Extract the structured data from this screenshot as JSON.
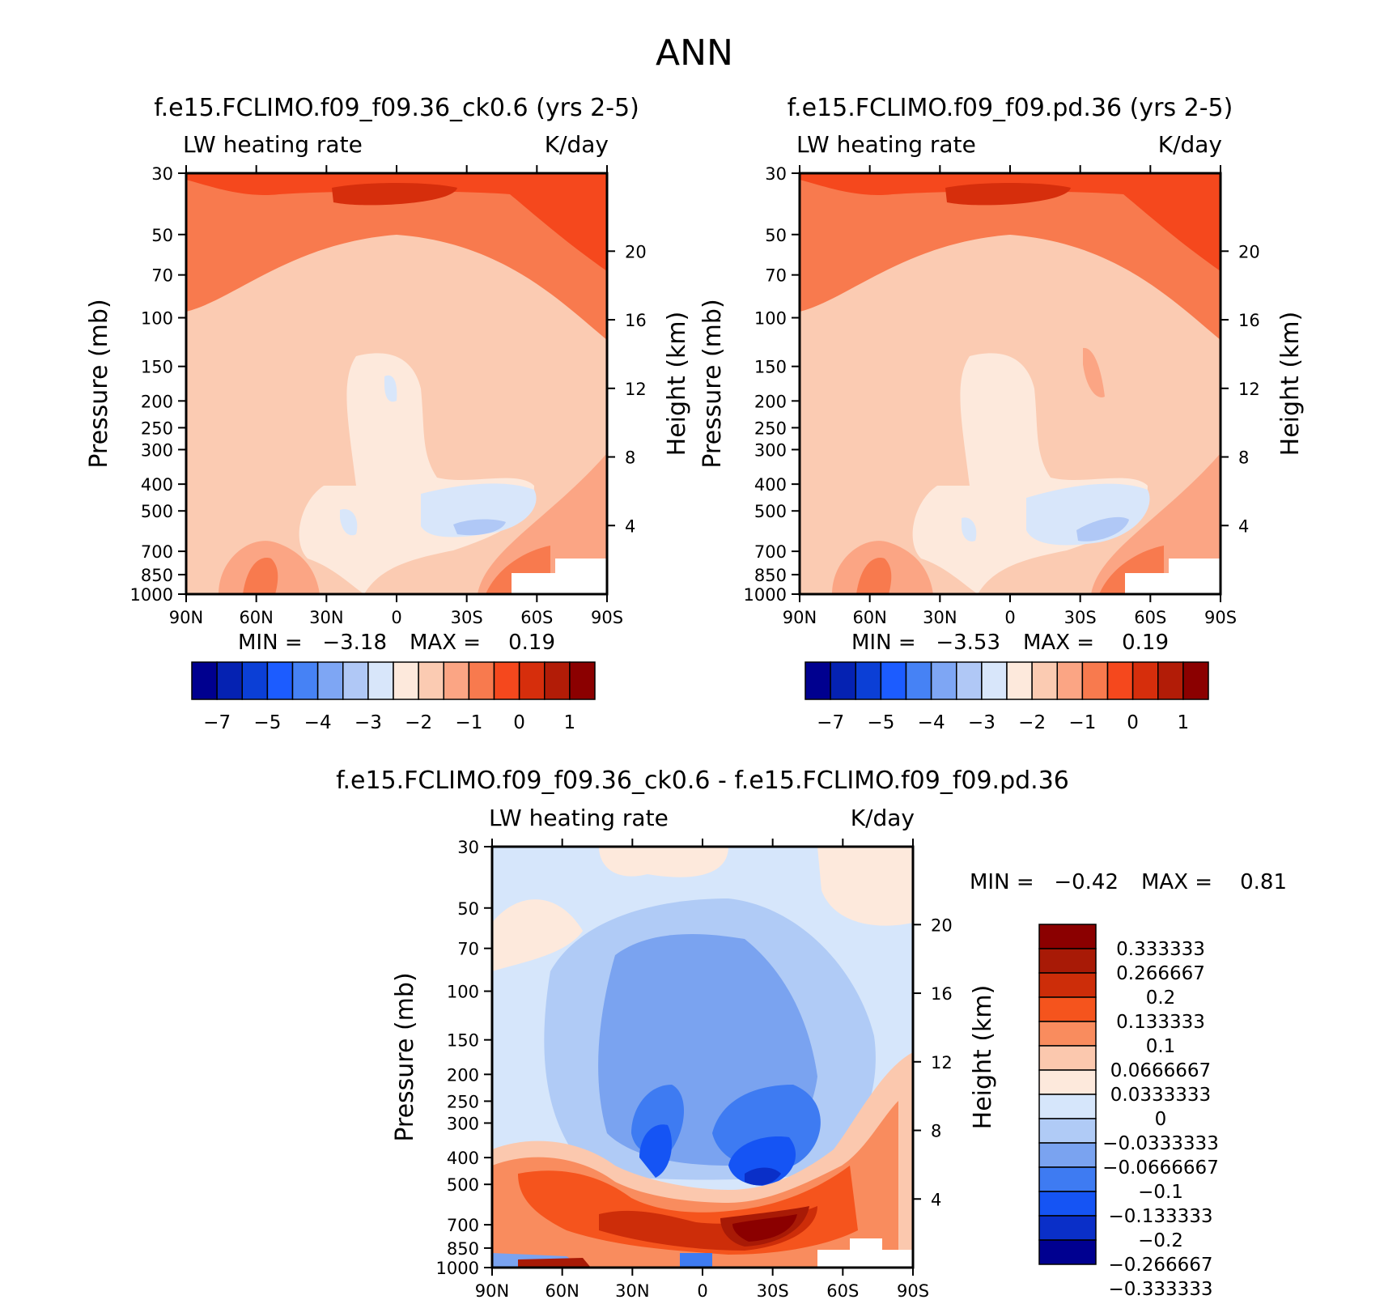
{
  "page_title": "ANN",
  "palette": {
    "abs": [
      "#00008f",
      "#0522b2",
      "#0b3fd6",
      "#1c5cff",
      "#4682f5",
      "#7ea6f4",
      "#b0c8f6",
      "#d8e6fa",
      "#fde9dc",
      "#fbcbb2",
      "#fba584",
      "#f87a4e",
      "#f5481d",
      "#d62e0c",
      "#b21c07",
      "#8b0000"
    ],
    "diff": [
      "#000090",
      "#0a2fc8",
      "#1554f4",
      "#3e7bf2",
      "#7aa3f0",
      "#b0cbf6",
      "#d6e6fb",
      "#fde9dc",
      "#fbc8ae",
      "#f98c5e",
      "#f5541d",
      "#cd2d09",
      "#a81a06",
      "#8b0000"
    ]
  },
  "chart_data": [
    {
      "type": "heatmap",
      "title": "f.e15.FCLIMO.f09_f09.36_ck0.6 (yrs 2-5)",
      "variable": "LW heating rate",
      "units": "K/day",
      "ylabel": "Pressure (mb)",
      "ylabel_right": "Height (km)",
      "x_ticks": [
        "90N",
        "60N",
        "30N",
        "0",
        "30S",
        "60S",
        "90S"
      ],
      "y_ticks": [
        30,
        50,
        70,
        100,
        150,
        200,
        250,
        300,
        400,
        500,
        700,
        850,
        1000
      ],
      "y_ticks_right": [
        20,
        16,
        12,
        8,
        4
      ],
      "ylim": [
        1000,
        30
      ],
      "log_pressure": true,
      "stats": {
        "min_label": "MIN =",
        "min": "-3.18",
        "max_label": "MAX =",
        "max": "0.19"
      },
      "colorbar": {
        "levels_labels": [
          "-7",
          "-5",
          "-4",
          "-3",
          "-2",
          "-1",
          "0",
          "1"
        ]
      }
    },
    {
      "type": "heatmap",
      "title": "f.e15.FCLIMO.f09_f09.pd.36 (yrs 2-5)",
      "variable": "LW heating rate",
      "units": "K/day",
      "ylabel": "Pressure (mb)",
      "ylabel_right": "Height (km)",
      "x_ticks": [
        "90N",
        "60N",
        "30N",
        "0",
        "30S",
        "60S",
        "90S"
      ],
      "y_ticks": [
        30,
        50,
        70,
        100,
        150,
        200,
        250,
        300,
        400,
        500,
        700,
        850,
        1000
      ],
      "y_ticks_right": [
        20,
        16,
        12,
        8,
        4
      ],
      "ylim": [
        1000,
        30
      ],
      "log_pressure": true,
      "stats": {
        "min_label": "MIN =",
        "min": "-3.53",
        "max_label": "MAX =",
        "max": "0.19"
      },
      "colorbar": {
        "levels_labels": [
          "-7",
          "-5",
          "-4",
          "-3",
          "-2",
          "-1",
          "0",
          "1"
        ]
      }
    },
    {
      "type": "heatmap",
      "title": "f.e15.FCLIMO.f09_f09.36_ck0.6 - f.e15.FCLIMO.f09_f09.pd.36",
      "variable": "LW heating rate",
      "units": "K/day",
      "ylabel": "Pressure (mb)",
      "ylabel_right": "Height (km)",
      "x_ticks": [
        "90N",
        "60N",
        "30N",
        "0",
        "30S",
        "60S",
        "90S"
      ],
      "y_ticks": [
        30,
        50,
        70,
        100,
        150,
        200,
        250,
        300,
        400,
        500,
        700,
        850,
        1000
      ],
      "y_ticks_right": [
        20,
        16,
        12,
        8,
        4
      ],
      "ylim": [
        1000,
        30
      ],
      "log_pressure": true,
      "stats": {
        "min_label": "MIN =",
        "min": "-0.42",
        "max_label": "MAX =",
        "max": "0.81"
      },
      "colorbar": {
        "levels_labels": [
          "0.333333",
          "0.266667",
          "0.2",
          "0.133333",
          "0.1",
          "0.0666667",
          "0.0333333",
          "0",
          "-0.0333333",
          "-0.0666667",
          "-0.1",
          "-0.133333",
          "-0.2",
          "-0.266667",
          "-0.333333"
        ]
      }
    }
  ]
}
